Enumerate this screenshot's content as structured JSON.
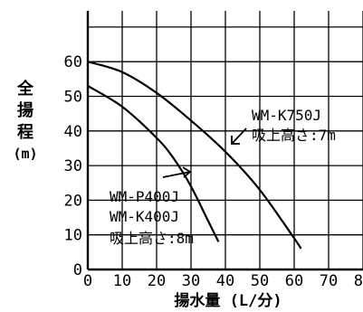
{
  "chart_data": {
    "type": "line",
    "title": "",
    "ylabel": "全揚程",
    "ylabel_chars": [
      "全",
      "揚",
      "程"
    ],
    "yunit": "(m)",
    "xlabel": "揚水量 (L/分)",
    "xlim": [
      0,
      80
    ],
    "ylim": [
      0,
      70
    ],
    "x_ticks": [
      "0",
      "10",
      "20",
      "30",
      "40",
      "50",
      "60",
      "70",
      "80"
    ],
    "y_ticks": [
      "0",
      "10",
      "20",
      "30",
      "40",
      "50",
      "60"
    ],
    "grid": true,
    "series": [
      {
        "name": "WM-K750J",
        "x": [
          0,
          10,
          20,
          30,
          40,
          50,
          60,
          62
        ],
        "y": [
          60,
          57,
          51,
          43,
          34,
          23,
          9,
          6
        ]
      },
      {
        "name": "WM-P400J / WM-K400J",
        "x": [
          0,
          10,
          20,
          25,
          30,
          35,
          38
        ],
        "y": [
          53,
          47,
          38,
          32,
          24,
          14,
          8
        ]
      }
    ],
    "annotations": [
      {
        "text": "WM-K750J",
        "target": "WM-K750J"
      },
      {
        "text": "吸上高さ:7m",
        "target": "WM-K750J"
      },
      {
        "text": "WM-P400J",
        "target": "WM-P400J / WM-K400J"
      },
      {
        "text": "WM-K400J",
        "target": "WM-P400J / WM-K400J"
      },
      {
        "text": "吸上高さ:8m",
        "target": "WM-P400J / WM-K400J"
      }
    ]
  }
}
